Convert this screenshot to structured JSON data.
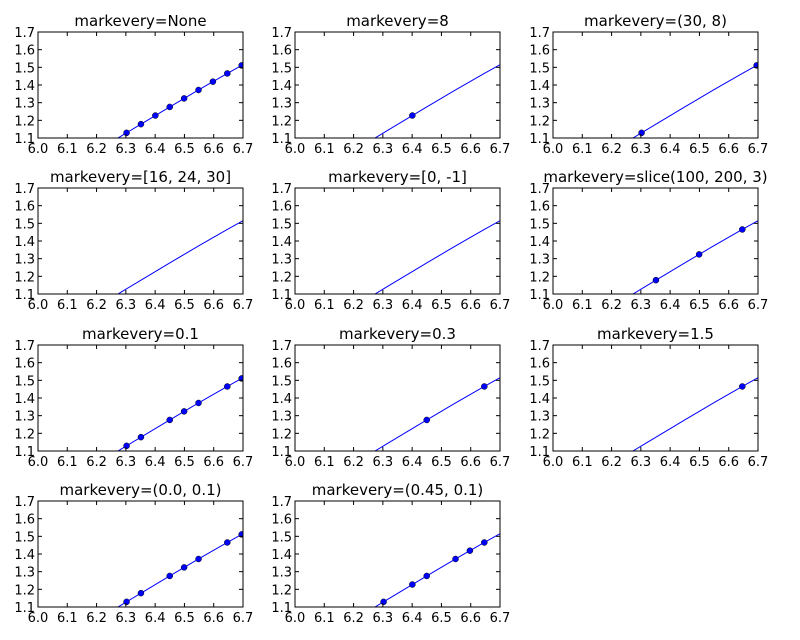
{
  "chart_data": {
    "type": "line",
    "xlim": [
      6.0,
      6.7
    ],
    "ylim": [
      1.1,
      1.7
    ],
    "xticks": [
      "6.0",
      "6.1",
      "6.2",
      "6.3",
      "6.4",
      "6.5",
      "6.6",
      "6.7"
    ],
    "yticks": [
      "1.1",
      "1.2",
      "1.3",
      "1.4",
      "1.5",
      "1.6",
      "1.7"
    ],
    "line_color": "#0000ff",
    "marker_color": "#0000ff",
    "line": {
      "x": [
        6.2532,
        6.3024,
        6.3515,
        6.4007,
        6.4498,
        6.499,
        6.5481,
        6.5972,
        6.6464,
        6.6955,
        6.7447
      ],
      "y": [
        1.08,
        1.1292,
        1.1783,
        1.2272,
        1.2758,
        1.3241,
        1.3718,
        1.4189,
        1.4653,
        1.5108,
        1.5553
      ]
    },
    "subplots": [
      {
        "title": "markevery=None",
        "markers_x": [
          6.3024,
          6.3515,
          6.4007,
          6.4498,
          6.499,
          6.5481,
          6.5972,
          6.6464,
          6.6955
        ]
      },
      {
        "title": "markevery=8",
        "markers_x": [
          6.4007
        ]
      },
      {
        "title": "markevery=(30, 8)",
        "markers_x": [
          6.3024,
          6.6955
        ]
      },
      {
        "title": "markevery=[16, 24, 30]",
        "markers_x": []
      },
      {
        "title": "markevery=[0, -1]",
        "markers_x": []
      },
      {
        "title": "markevery=slice(100, 200, 3)",
        "markers_x": [
          6.3515,
          6.499,
          6.6464
        ]
      },
      {
        "title": "markevery=0.1",
        "markers_x": [
          6.3024,
          6.3515,
          6.4498,
          6.499,
          6.5481,
          6.6464,
          6.6955
        ]
      },
      {
        "title": "markevery=0.3",
        "markers_x": [
          6.4498,
          6.6464
        ]
      },
      {
        "title": "markevery=1.5",
        "markers_x": [
          6.6464
        ]
      },
      {
        "title": "markevery=(0.0, 0.1)",
        "markers_x": [
          6.3024,
          6.3515,
          6.4498,
          6.499,
          6.5481,
          6.6464,
          6.6955
        ]
      },
      {
        "title": "markevery=(0.45, 0.1)",
        "markers_x": [
          6.3024,
          6.4007,
          6.4498,
          6.5481,
          6.5972,
          6.6464
        ]
      }
    ]
  }
}
